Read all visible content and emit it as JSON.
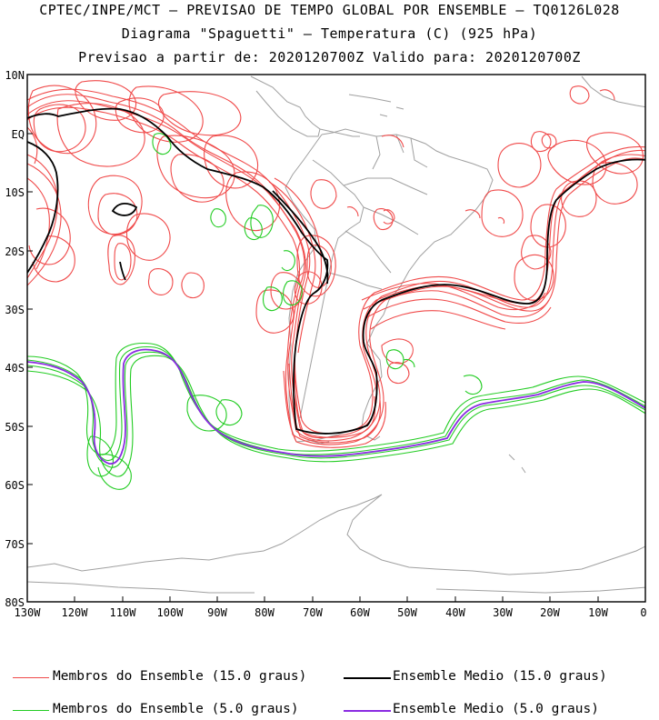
{
  "header": {
    "line1": "CPTEC/INPE/MCT – PREVISAO DE TEMPO GLOBAL POR ENSEMBLE – TQ0126L028",
    "line2": "Diagrama \"Spaguetti\" – Temperatura (C) (925 hPa)",
    "line3": "Previsao a partir de: 2020120700Z  Valido para: 2020120700Z"
  },
  "axes": {
    "lat_labels": [
      "10N",
      "EQ",
      "10S",
      "20S",
      "30S",
      "40S",
      "50S",
      "60S",
      "70S",
      "80S"
    ],
    "lon_labels": [
      "130W",
      "120W",
      "110W",
      "100W",
      "90W",
      "80W",
      "70W",
      "60W",
      "50W",
      "40W",
      "30W",
      "20W",
      "10W",
      "0"
    ],
    "lon_range": [
      -130,
      0
    ],
    "lat_range": [
      -80,
      10
    ]
  },
  "legend": {
    "items": [
      {
        "label": "Membros do Ensemble (15.0 graus)",
        "color": "#f04a4a"
      },
      {
        "label": "Ensemble Medio (15.0 graus)",
        "color": "#000000"
      },
      {
        "label": "Membros do Ensemble (5.0 graus)",
        "color": "#22cc22"
      },
      {
        "label": "Ensemble Medio (5.0 graus)",
        "color": "#8a2be2"
      }
    ]
  },
  "colors": {
    "members_15": "#f04a4a",
    "mean_15": "#000000",
    "members_5": "#22cc22",
    "mean_5": "#8a2be2",
    "coast": "#a0a0a0"
  }
}
